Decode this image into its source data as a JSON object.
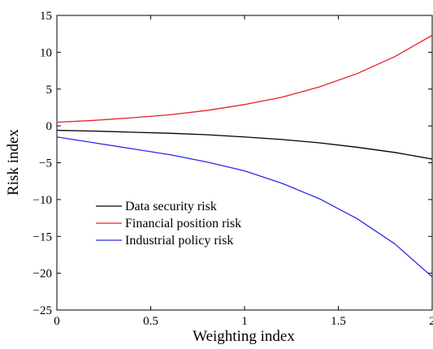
{
  "chart_data": {
    "type": "line",
    "title": "",
    "xlabel": "Weighting index",
    "ylabel": "Risk index",
    "xlim": [
      0,
      2
    ],
    "ylim": [
      -25,
      15
    ],
    "xticks": [
      0,
      0.5,
      1,
      1.5,
      2
    ],
    "xtick_labels": [
      "0",
      "0.5",
      "1",
      "1.5",
      "2"
    ],
    "yticks": [
      15,
      10,
      5,
      0,
      -5,
      -10,
      -15,
      -20,
      -25
    ],
    "ytick_labels": [
      "15",
      "10",
      "5",
      "0",
      "−5",
      "−10",
      "−15",
      "−20",
      "−25"
    ],
    "grid": false,
    "legend_position": "lower-left",
    "series": [
      {
        "name": "Data security risk",
        "color": "#000000",
        "x": [
          0,
          0.2,
          0.4,
          0.6,
          0.8,
          1.0,
          1.2,
          1.4,
          1.6,
          1.8,
          2.0
        ],
        "y": [
          -0.6,
          -0.7,
          -0.85,
          -1.0,
          -1.2,
          -1.5,
          -1.85,
          -2.3,
          -2.9,
          -3.6,
          -4.5
        ]
      },
      {
        "name": "Financial position risk",
        "color": "#e8202a",
        "x": [
          0,
          0.2,
          0.4,
          0.6,
          0.8,
          1.0,
          1.2,
          1.4,
          1.6,
          1.8,
          2.0
        ],
        "y": [
          0.5,
          0.75,
          1.1,
          1.5,
          2.1,
          2.9,
          3.9,
          5.3,
          7.1,
          9.4,
          12.3
        ]
      },
      {
        "name": "Industrial policy risk",
        "color": "#2a2ae8",
        "x": [
          0,
          0.2,
          0.4,
          0.6,
          0.8,
          1.0,
          1.2,
          1.4,
          1.6,
          1.8,
          2.0
        ],
        "y": [
          -1.5,
          -2.3,
          -3.1,
          -3.9,
          -4.9,
          -6.1,
          -7.8,
          -9.9,
          -12.6,
          -16.0,
          -20.5
        ]
      }
    ]
  }
}
